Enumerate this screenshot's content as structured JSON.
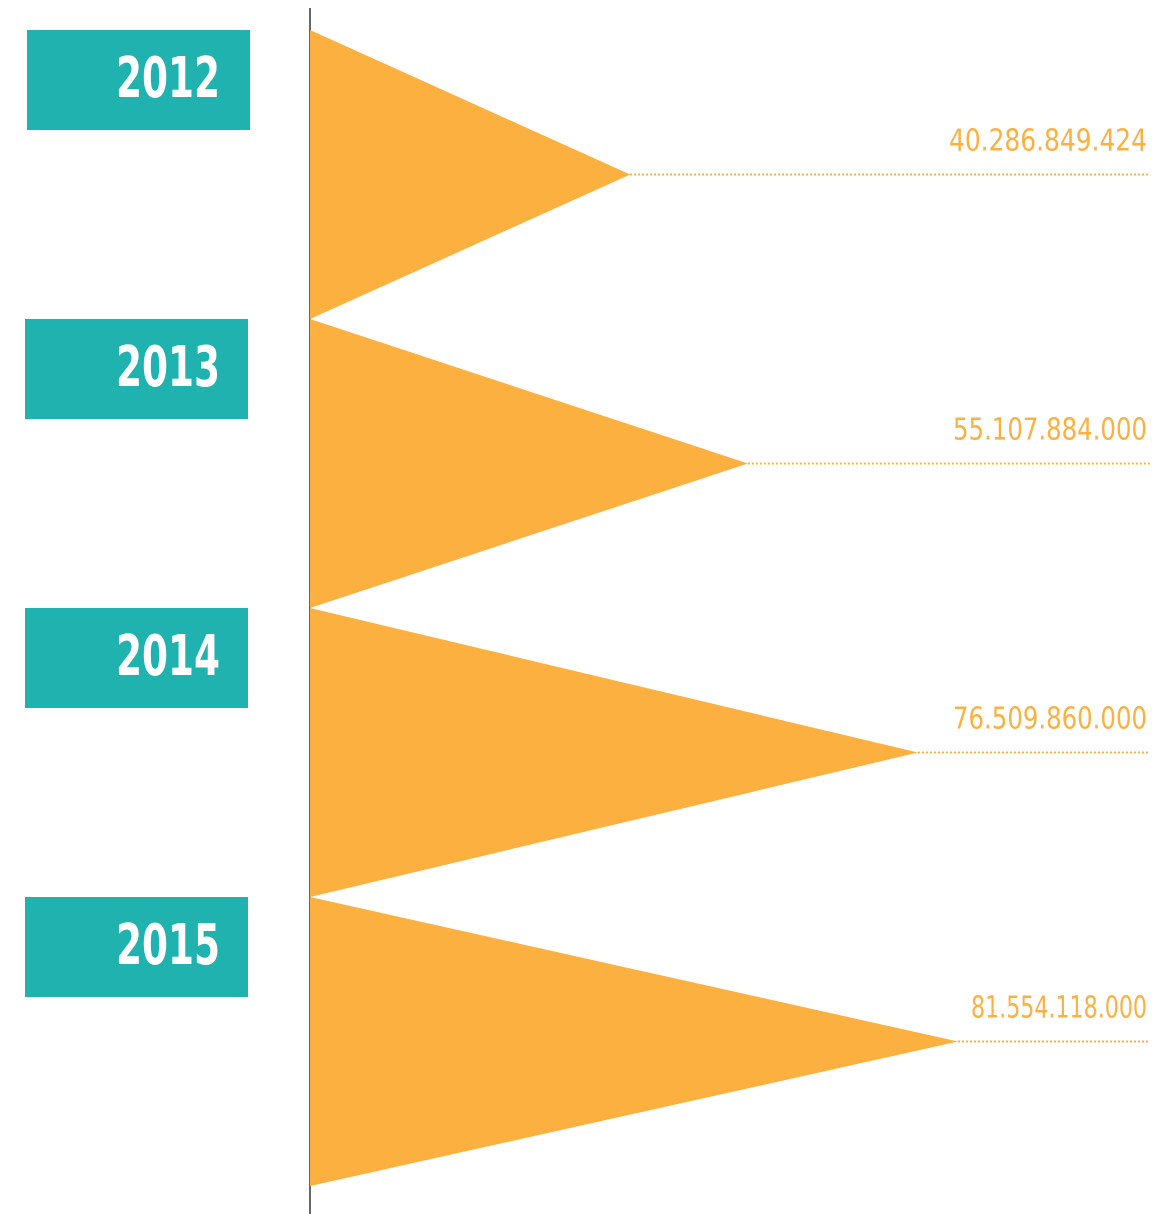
{
  "chart_data": {
    "type": "triangle-bar",
    "categories": [
      "2012",
      "2013",
      "2014",
      "2015"
    ],
    "values": [
      40286849424,
      55107884000,
      76509860000,
      81554118000
    ],
    "value_labels": [
      "40.286.849.424",
      "55.107.884.000",
      "76.509.860.000",
      "81.554.118.000"
    ],
    "color": "#fbb040",
    "category_color": "#20b2ae"
  }
}
